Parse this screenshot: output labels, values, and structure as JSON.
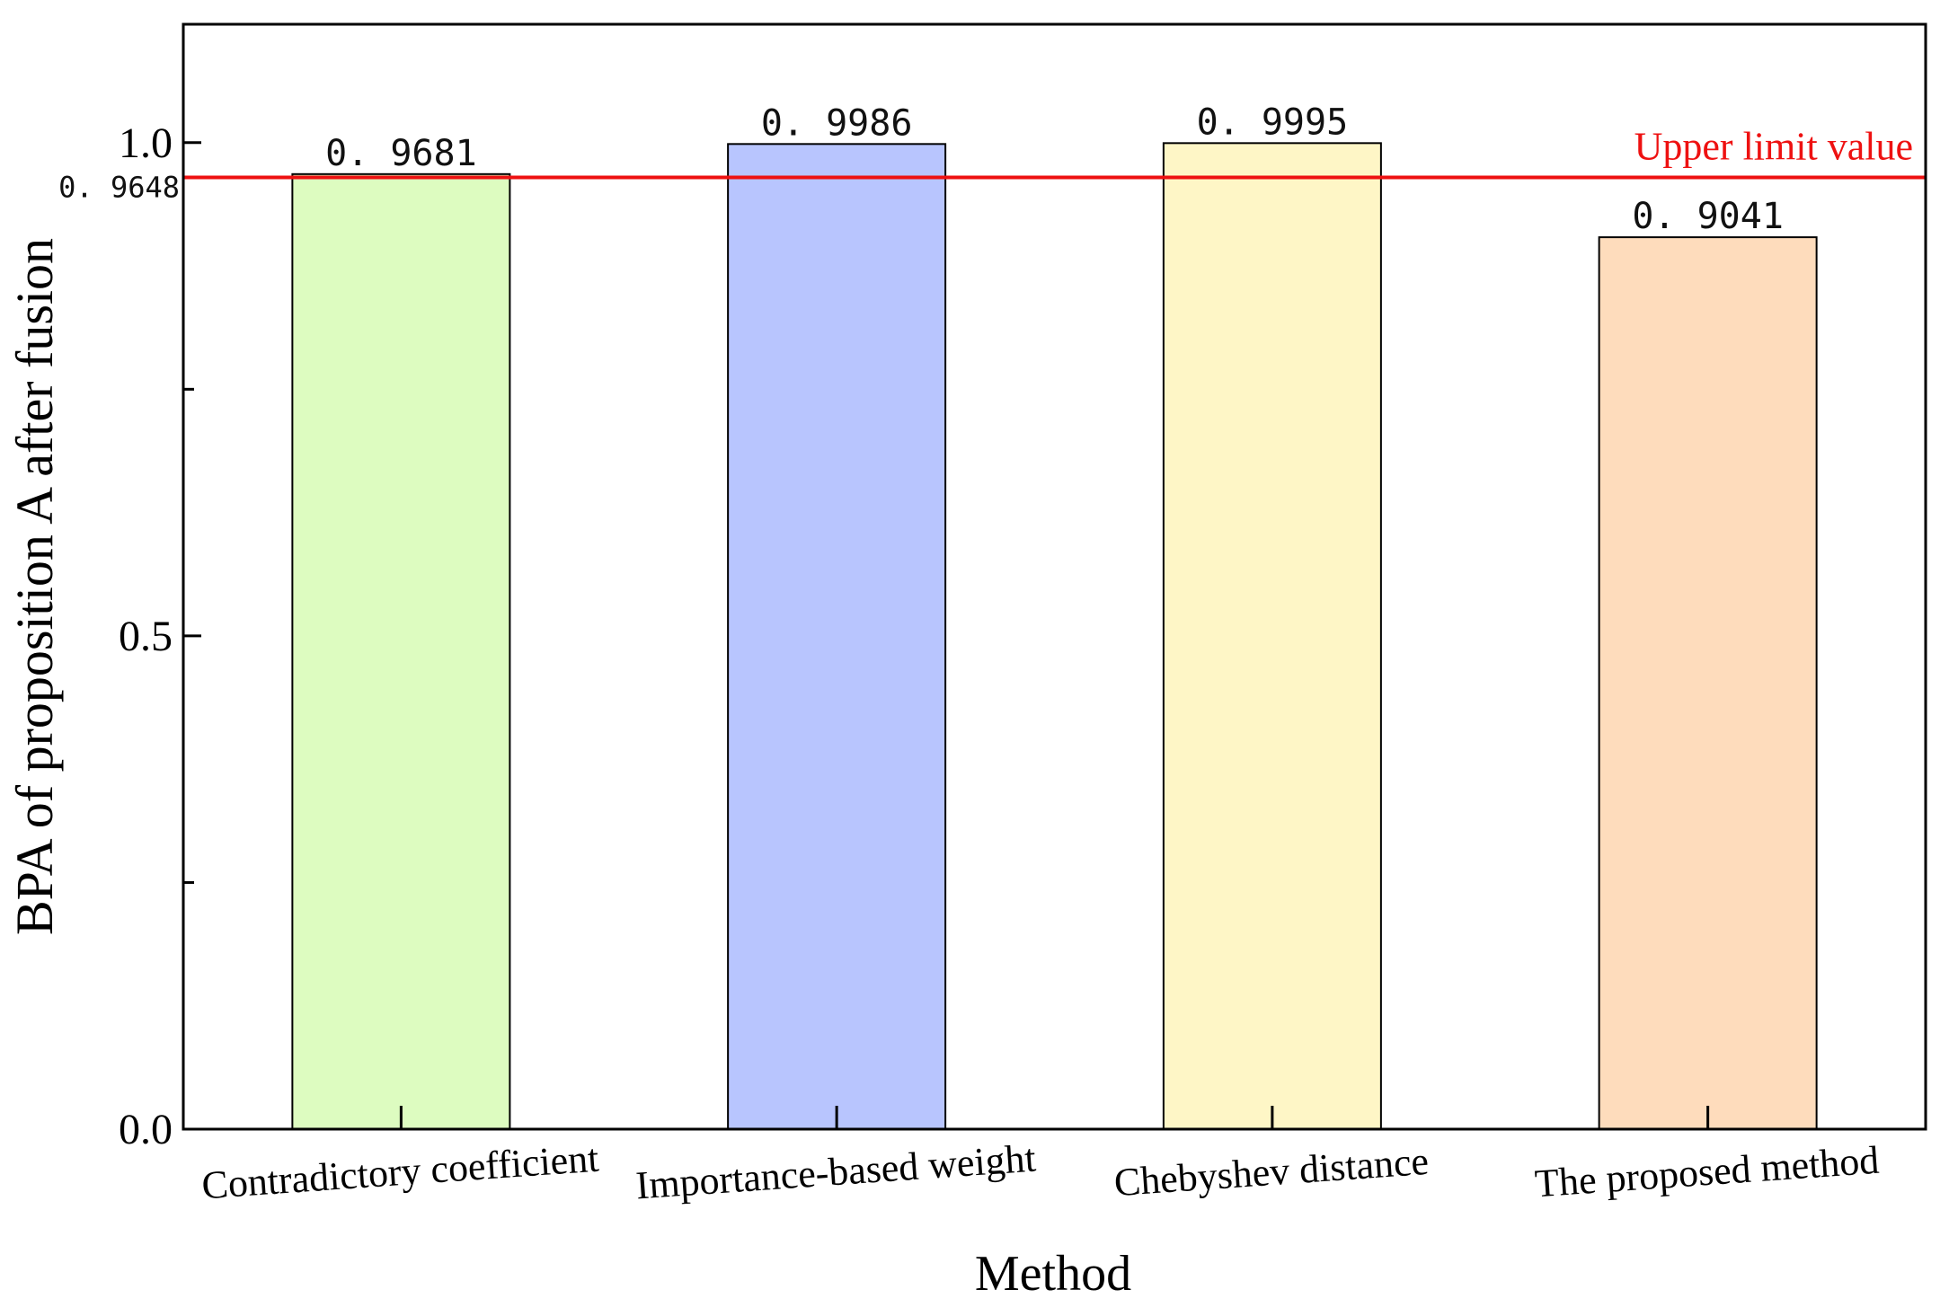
{
  "chart_data": {
    "type": "bar",
    "title": "",
    "xlabel": "Method",
    "ylabel": "BPA of proposition A after fusion",
    "categories": [
      "Contradictory coefficient",
      "Importance-based weight",
      "Chebyshev distance",
      "The proposed method"
    ],
    "values": [
      0.9681,
      0.9986,
      0.9995,
      0.9041
    ],
    "value_labels": [
      "0. 9681",
      "0. 9986",
      "0. 9995",
      "0. 9041"
    ],
    "bar_colors": [
      "#ddfcc0",
      "#b8c5fe",
      "#fef6c6",
      "#fedcbc"
    ],
    "ylim": [
      0,
      1.12
    ],
    "yticks": [
      0.0,
      0.25,
      0.5,
      0.75,
      1.0
    ],
    "ytick_labels": [
      "0.0",
      "",
      "0.5",
      "",
      "1.0"
    ],
    "grid": false,
    "reference_line": {
      "value": 0.9648,
      "value_label": "0. 9648",
      "label": "Upper limit value",
      "color": "#ee1111"
    }
  }
}
